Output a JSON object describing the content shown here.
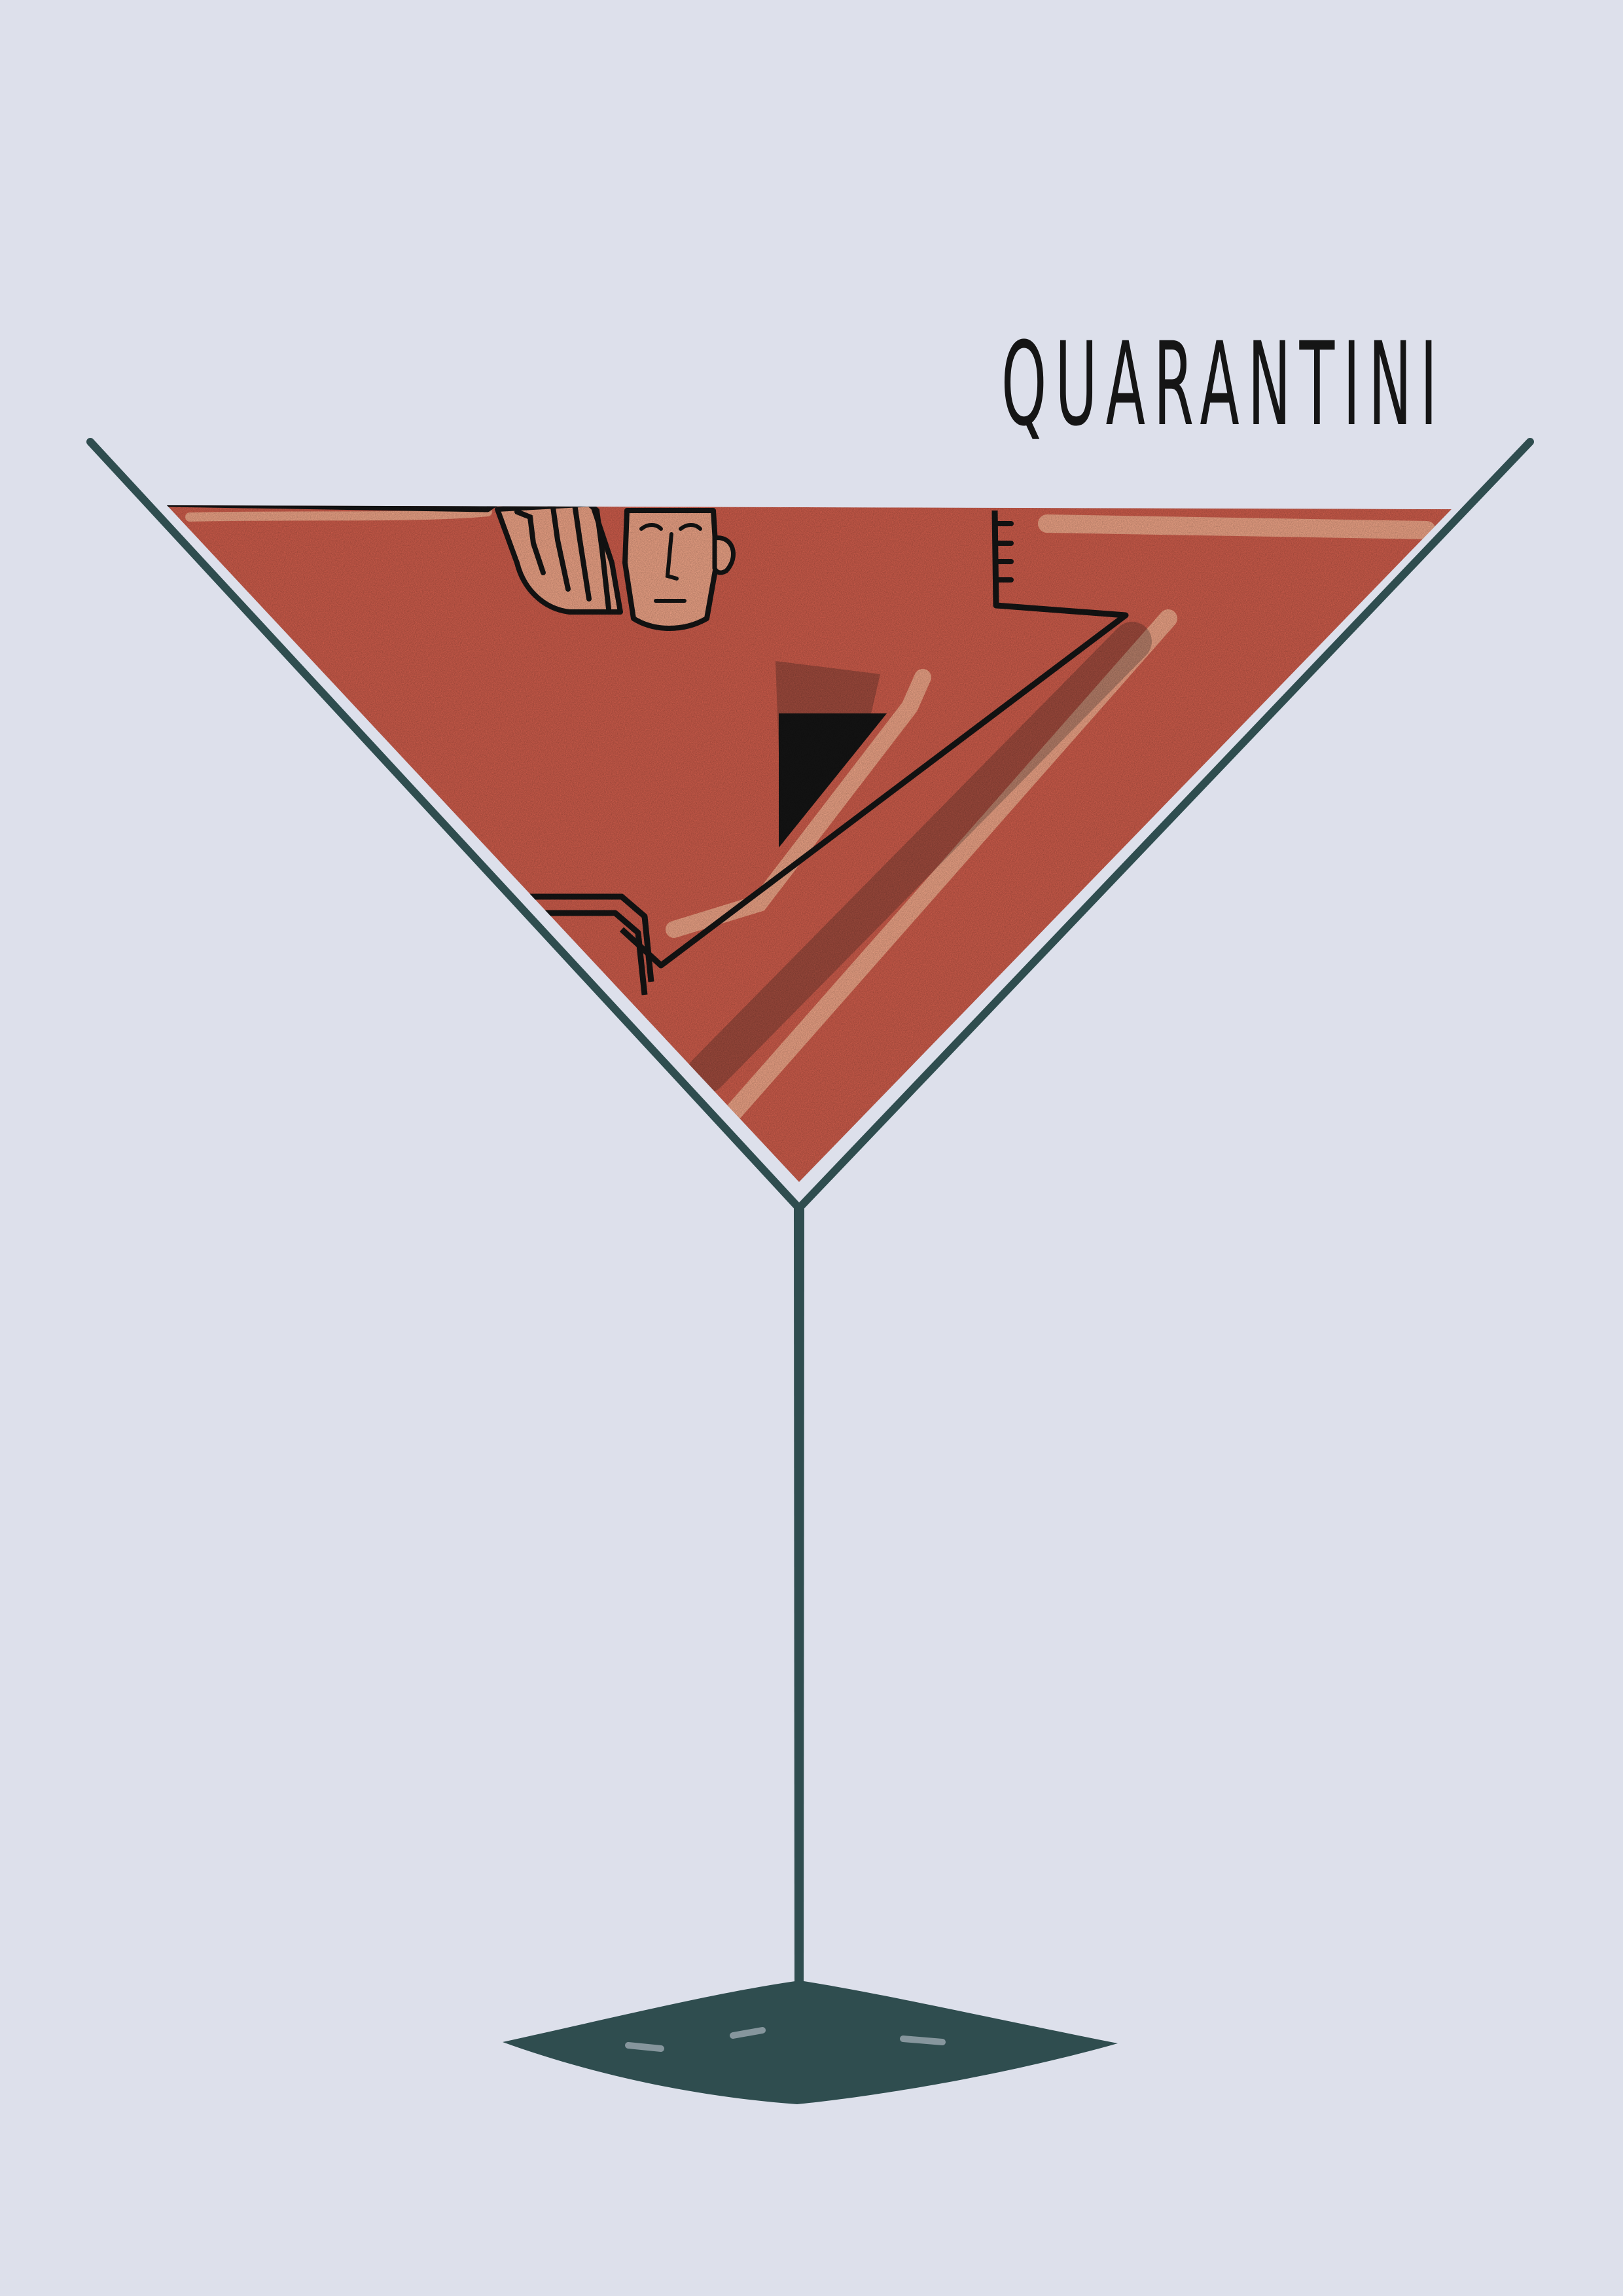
{
  "poster": {
    "title": "QUARANTINI"
  },
  "colors": {
    "background": "#dde0eb",
    "glass": "#2f4d4f",
    "drink": "#d6604e",
    "skin": "#f6a98b",
    "ink": "#151515"
  }
}
